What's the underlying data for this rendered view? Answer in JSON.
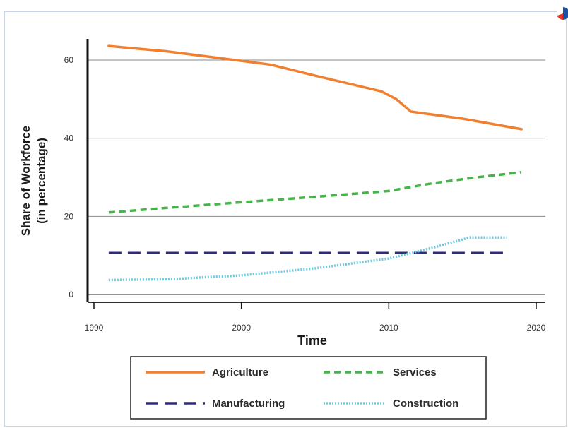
{
  "chart_data": {
    "type": "line",
    "title": "",
    "xlabel": "Time",
    "ylabel_lines": [
      "Share of Workforce",
      "(in percentage)"
    ],
    "xlim": [
      1990,
      2020
    ],
    "ylim": [
      0,
      65
    ],
    "x_ticks": [
      1990,
      2000,
      2010,
      2020
    ],
    "y_ticks": [
      0,
      20,
      40,
      60
    ],
    "grid": "horizontal",
    "legend_position": "bottom",
    "series": [
      {
        "name": "Agriculture",
        "color": "#f07f2f",
        "style": "solid",
        "points": [
          [
            1991,
            63.6
          ],
          [
            1995,
            62.2
          ],
          [
            2000,
            59.8
          ],
          [
            2002,
            58.8
          ],
          [
            2005,
            56.0
          ],
          [
            2009.5,
            52.0
          ],
          [
            2010.5,
            50.0
          ],
          [
            2011.5,
            46.8
          ],
          [
            2015,
            45.0
          ],
          [
            2019,
            42.3
          ]
        ]
      },
      {
        "name": "Services",
        "color": "#43b549",
        "style": "dashed",
        "points": [
          [
            1991,
            21.0
          ],
          [
            1995,
            22.2
          ],
          [
            2000,
            23.6
          ],
          [
            2005,
            25.0
          ],
          [
            2010,
            26.5
          ],
          [
            2013,
            28.5
          ],
          [
            2016,
            30.0
          ],
          [
            2019,
            31.3
          ]
        ]
      },
      {
        "name": "Manufacturing",
        "color": "#2e2b7a",
        "style": "longdash",
        "points": [
          [
            1991,
            10.6
          ],
          [
            2018,
            10.6
          ]
        ]
      },
      {
        "name": "Construction",
        "color": "#6ec9df",
        "style": "dotted",
        "points": [
          [
            1991,
            3.7
          ],
          [
            1995,
            3.9
          ],
          [
            2000,
            4.9
          ],
          [
            2005,
            6.7
          ],
          [
            2010,
            9.2
          ],
          [
            2013,
            12.0
          ],
          [
            2015.5,
            14.6
          ],
          [
            2018,
            14.6
          ]
        ]
      }
    ]
  }
}
